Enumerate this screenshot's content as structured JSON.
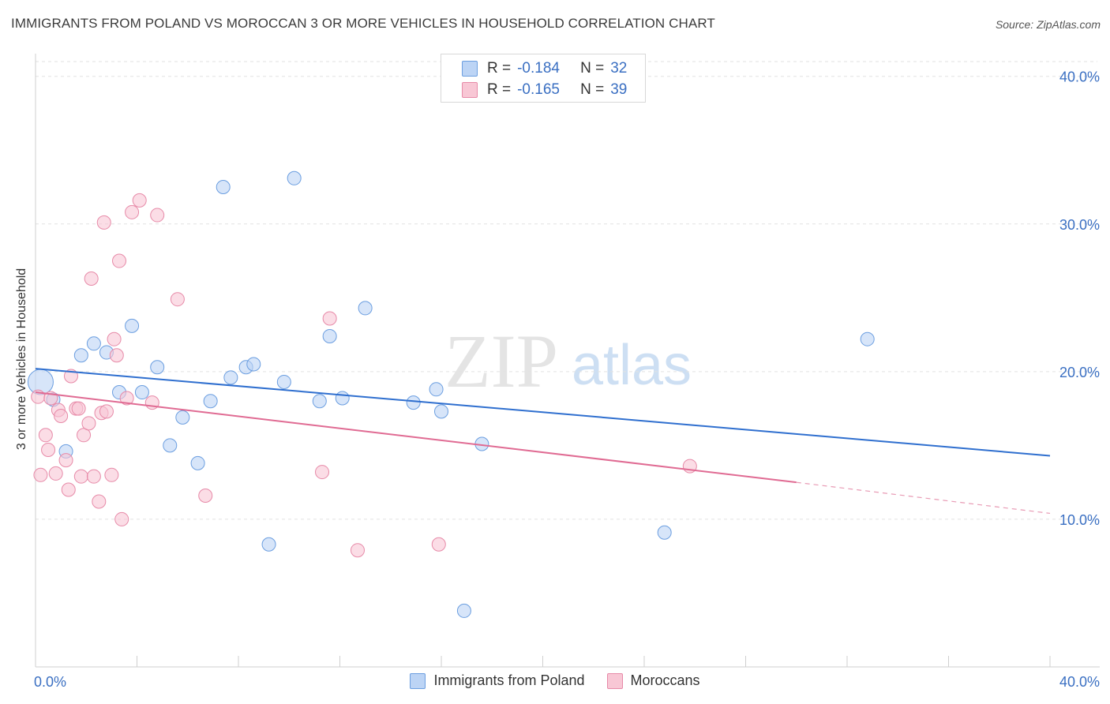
{
  "title": "IMMIGRANTS FROM POLAND VS MOROCCAN 3 OR MORE VEHICLES IN HOUSEHOLD CORRELATION CHART",
  "source": "Source: ZipAtlas.com",
  "watermark": {
    "zip": "ZIP",
    "atlas": "atlas"
  },
  "legend_stats": [
    {
      "r_label": "R =",
      "r_value": "-0.184",
      "n_label": "N =",
      "n_value": "32"
    },
    {
      "r_label": "R =",
      "r_value": "-0.165",
      "n_label": "N =",
      "n_value": "39"
    }
  ],
  "chart_data": {
    "type": "scatter",
    "title": "IMMIGRANTS FROM POLAND VS MOROCCAN 3 OR MORE VEHICLES IN HOUSEHOLD CORRELATION CHART",
    "xlabel": "",
    "ylabel": "3 or more Vehicles in Household",
    "xlim": [
      0,
      40
    ],
    "ylim": [
      0,
      41
    ],
    "x_tick_labels": [
      "0.0%",
      "40.0%"
    ],
    "y_tick_labels": [
      "10.0%",
      "20.0%",
      "30.0%",
      "40.0%"
    ],
    "y_ticks": [
      10,
      20,
      30,
      40
    ],
    "x_minor_ticks": [
      4,
      8,
      12,
      16,
      20,
      24,
      28,
      32,
      36,
      40
    ],
    "grid": "horizontal dashed",
    "legend_position": "bottom",
    "series": [
      {
        "name": "Immigrants from Poland",
        "color": "#6b9ee0",
        "fill": "#bcd4f5",
        "points": [
          [
            0.2,
            19.3
          ],
          [
            0.7,
            18.1
          ],
          [
            1.2,
            14.6
          ],
          [
            1.8,
            21.1
          ],
          [
            2.3,
            21.9
          ],
          [
            2.8,
            21.3
          ],
          [
            3.3,
            18.6
          ],
          [
            3.8,
            23.1
          ],
          [
            4.2,
            18.6
          ],
          [
            4.8,
            20.3
          ],
          [
            5.3,
            15.0
          ],
          [
            5.8,
            16.9
          ],
          [
            6.4,
            13.8
          ],
          [
            6.9,
            18.0
          ],
          [
            7.4,
            32.5
          ],
          [
            7.7,
            19.6
          ],
          [
            8.3,
            20.3
          ],
          [
            8.6,
            20.5
          ],
          [
            9.2,
            8.3
          ],
          [
            9.8,
            19.3
          ],
          [
            10.2,
            33.1
          ],
          [
            11.2,
            18.0
          ],
          [
            11.6,
            22.4
          ],
          [
            12.1,
            18.2
          ],
          [
            13.0,
            24.3
          ],
          [
            14.9,
            17.9
          ],
          [
            15.8,
            18.8
          ],
          [
            16.0,
            17.3
          ],
          [
            16.9,
            3.8
          ],
          [
            17.6,
            15.1
          ],
          [
            24.8,
            9.1
          ],
          [
            32.8,
            22.2
          ]
        ],
        "trend": {
          "x0": 0,
          "y0": 20.2,
          "x1": 40,
          "y1": 14.3
        }
      },
      {
        "name": "Moroccans",
        "color": "#e78aa8",
        "fill": "#f8c7d5",
        "points": [
          [
            0.1,
            18.3
          ],
          [
            0.2,
            13.0
          ],
          [
            0.4,
            15.7
          ],
          [
            0.5,
            14.7
          ],
          [
            0.6,
            18.2
          ],
          [
            0.8,
            13.1
          ],
          [
            0.9,
            17.4
          ],
          [
            1.0,
            17.0
          ],
          [
            1.2,
            14.0
          ],
          [
            1.3,
            12.0
          ],
          [
            1.4,
            19.7
          ],
          [
            1.6,
            17.5
          ],
          [
            1.7,
            17.5
          ],
          [
            1.8,
            12.9
          ],
          [
            1.9,
            15.7
          ],
          [
            2.1,
            16.5
          ],
          [
            2.2,
            26.3
          ],
          [
            2.3,
            12.9
          ],
          [
            2.5,
            11.2
          ],
          [
            2.6,
            17.2
          ],
          [
            2.7,
            30.1
          ],
          [
            2.8,
            17.3
          ],
          [
            3.0,
            13.0
          ],
          [
            3.1,
            22.2
          ],
          [
            3.2,
            21.1
          ],
          [
            3.3,
            27.5
          ],
          [
            3.4,
            10.0
          ],
          [
            3.6,
            18.2
          ],
          [
            3.8,
            30.8
          ],
          [
            4.1,
            31.6
          ],
          [
            4.6,
            17.9
          ],
          [
            4.8,
            30.6
          ],
          [
            5.6,
            24.9
          ],
          [
            6.7,
            11.6
          ],
          [
            11.3,
            13.2
          ],
          [
            11.6,
            23.6
          ],
          [
            12.7,
            7.9
          ],
          [
            15.9,
            8.3
          ],
          [
            25.8,
            13.6
          ]
        ],
        "trend": {
          "x0": 0,
          "y0": 18.6,
          "x1": 30,
          "y1": 12.5,
          "dash_to_x": 40,
          "dash_to_y": 10.4
        }
      }
    ]
  }
}
